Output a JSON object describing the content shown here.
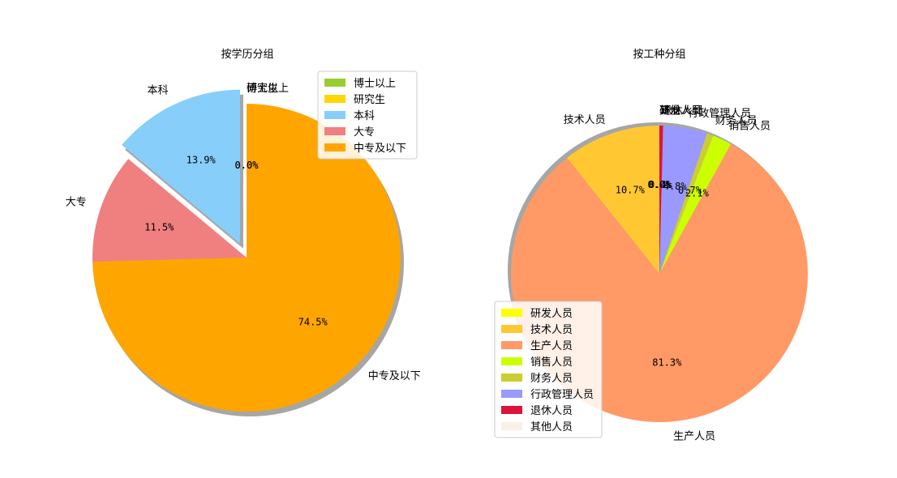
{
  "chart_data": [
    {
      "type": "pie",
      "title": "按学历分组",
      "categories": [
        "博士以上",
        "研究生",
        "本科",
        "大专",
        "中专及以下"
      ],
      "values": [
        0.0,
        0.0,
        13.9,
        11.5,
        74.5
      ],
      "value_labels": [
        "0.0%",
        "0.0%",
        "13.9%",
        "11.5%",
        "74.5%"
      ],
      "colors": [
        "#9acd32",
        "#ffd700",
        "#87cefa",
        "#f08080",
        "#ffa500"
      ],
      "explode": [
        0,
        0,
        0.1,
        0,
        0
      ],
      "shadow": true,
      "legend": "upper right"
    },
    {
      "type": "pie",
      "title": "按工种分组",
      "categories": [
        "研发人员",
        "技术人员",
        "生产人员",
        "销售人员",
        "财务人员",
        "行政管理人员",
        "退休人员",
        "其他人员"
      ],
      "values": [
        0.0,
        10.7,
        81.3,
        2.1,
        0.7,
        4.8,
        0.4,
        0.0
      ],
      "value_labels": [
        "0.0%",
        "10.7%",
        "81.3%",
        "2.1%",
        "0.7%",
        "4.8%",
        "0.4%",
        "0.0%"
      ],
      "colors": [
        "#ffff00",
        "#ffc832",
        "#ff9966",
        "#ccff00",
        "#cccc33",
        "#9999ff",
        "#dc143c",
        "#faf0e6"
      ],
      "shadow": true,
      "legend": "lower left"
    }
  ]
}
